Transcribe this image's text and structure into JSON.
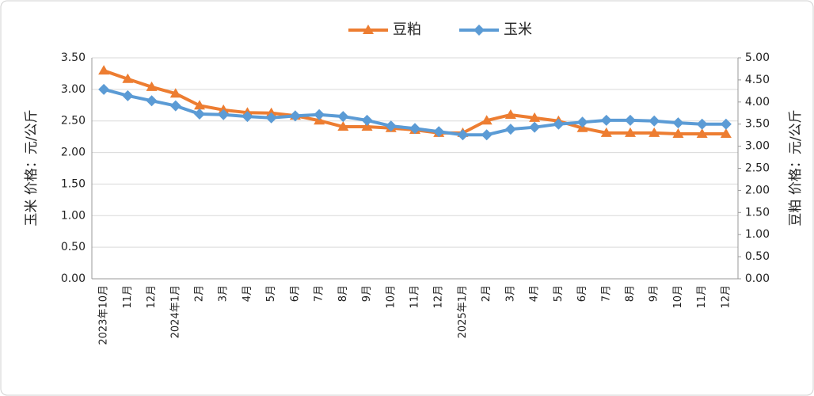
{
  "chart_data": {
    "type": "line",
    "y_label": "玉米  价格：元/公斤",
    "y2_label": "豆粕  价格：元/公斤",
    "categories": [
      "2023年10月",
      "11月",
      "12月",
      "2024年1月",
      "2月",
      "3月",
      "4月",
      "5月",
      "6月",
      "7月",
      "8月",
      "9月",
      "10月",
      "11月",
      "12月",
      "2025年1月",
      "2月",
      "3月",
      "4月",
      "5月",
      "6月",
      "7月",
      "8月",
      "9月",
      "10月",
      "11月",
      "12月"
    ],
    "series": [
      {
        "name": "豆粕",
        "color": "#ed7d31",
        "marker": "triangle",
        "axis": "y2",
        "values": [
          4.71,
          4.52,
          4.34,
          4.19,
          3.92,
          3.82,
          3.76,
          3.75,
          3.69,
          3.58,
          3.44,
          3.44,
          3.41,
          3.37,
          3.3,
          3.3,
          3.58,
          3.71,
          3.64,
          3.57,
          3.41,
          3.3,
          3.3,
          3.3,
          3.28,
          3.28,
          3.28
        ]
      },
      {
        "name": "玉米",
        "color": "#5b9bd5",
        "marker": "diamond",
        "values": [
          3.0,
          2.9,
          2.82,
          2.74,
          2.61,
          2.6,
          2.57,
          2.55,
          2.58,
          2.6,
          2.57,
          2.51,
          2.42,
          2.38,
          2.33,
          2.28,
          2.28,
          2.37,
          2.4,
          2.45,
          2.48,
          2.51,
          2.51,
          2.5,
          2.47,
          2.45,
          2.45
        ]
      }
    ],
    "ylim": [
      0,
      3.5
    ],
    "yticks": [
      {
        "value": 0,
        "label": "0.00"
      },
      {
        "value": 0.5,
        "label": "0.50"
      },
      {
        "value": 1,
        "label": "1.00"
      },
      {
        "value": 1.5,
        "label": "1.50"
      },
      {
        "value": 2,
        "label": "2.00"
      },
      {
        "value": 2.5,
        "label": "2.50"
      },
      {
        "value": 3,
        "label": "3.00"
      },
      {
        "value": 3.5,
        "label": "3.50"
      }
    ],
    "y2lim": [
      0,
      5
    ],
    "y2ticks": [
      {
        "value": 0,
        "label": "0.00"
      },
      {
        "value": 0.5,
        "label": "0.50"
      },
      {
        "value": 1,
        "label": "1.00"
      },
      {
        "value": 1.5,
        "label": "1.50"
      },
      {
        "value": 2,
        "label": "2.00"
      },
      {
        "value": 2.5,
        "label": "2.50"
      },
      {
        "value": 3,
        "label": "3.00"
      },
      {
        "value": 3.5,
        "label": "3.50"
      },
      {
        "value": 4,
        "label": "4.00"
      },
      {
        "value": 4.5,
        "label": "4.50"
      },
      {
        "value": 5,
        "label": "5.00"
      }
    ],
    "grid": true,
    "legend": "top"
  }
}
